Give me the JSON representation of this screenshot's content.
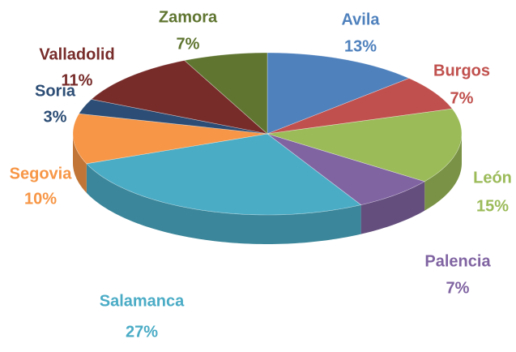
{
  "chart_data": {
    "type": "pie",
    "categories": [
      "Avila",
      "Burgos",
      "León",
      "Palencia",
      "Salamanca",
      "Segovia",
      "Soria",
      "Valladolid",
      "Zamora"
    ],
    "values": [
      13,
      7,
      15,
      7,
      27,
      10,
      3,
      11,
      7
    ],
    "value_labels": [
      "13%",
      "7%",
      "15%",
      "7%",
      "27%",
      "10%",
      "3%",
      "11%",
      "7%"
    ],
    "colors": [
      "#4f81bd",
      "#c0504d",
      "#9bbb59",
      "#8064a2",
      "#4bacc6",
      "#f79646",
      "#2c4d75",
      "#772c2a",
      "#5f7530"
    ]
  }
}
